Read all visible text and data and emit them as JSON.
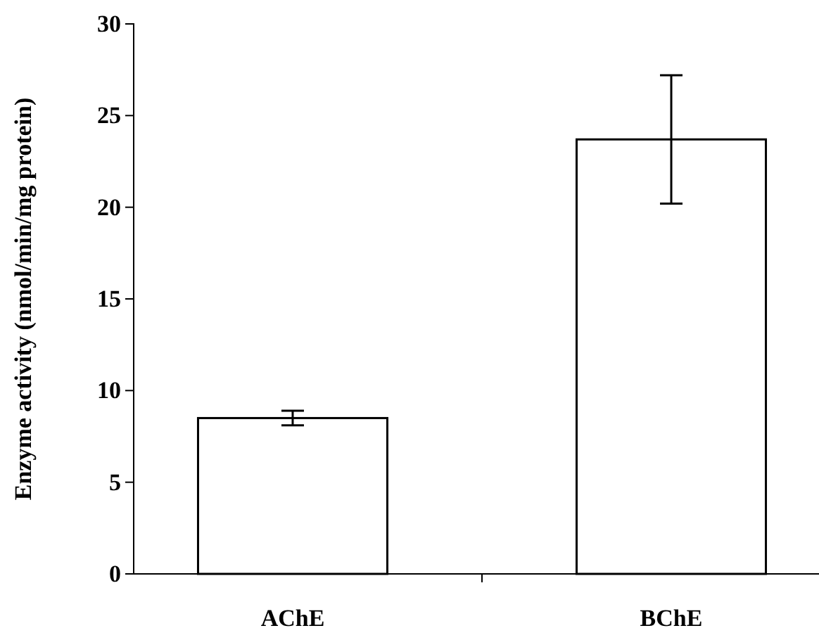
{
  "chart_data": {
    "type": "bar",
    "ylabel": "Enzyme activity (nmol/min/mg protein)",
    "categories": [
      "AChE",
      "BChE"
    ],
    "values": [
      8.5,
      23.7
    ],
    "errors": [
      0.4,
      3.5
    ],
    "color": "#ffffff",
    "ylim": [
      0,
      30
    ],
    "yticks": [
      0,
      5,
      10,
      15,
      20,
      25,
      30
    ],
    "grid": false
  }
}
